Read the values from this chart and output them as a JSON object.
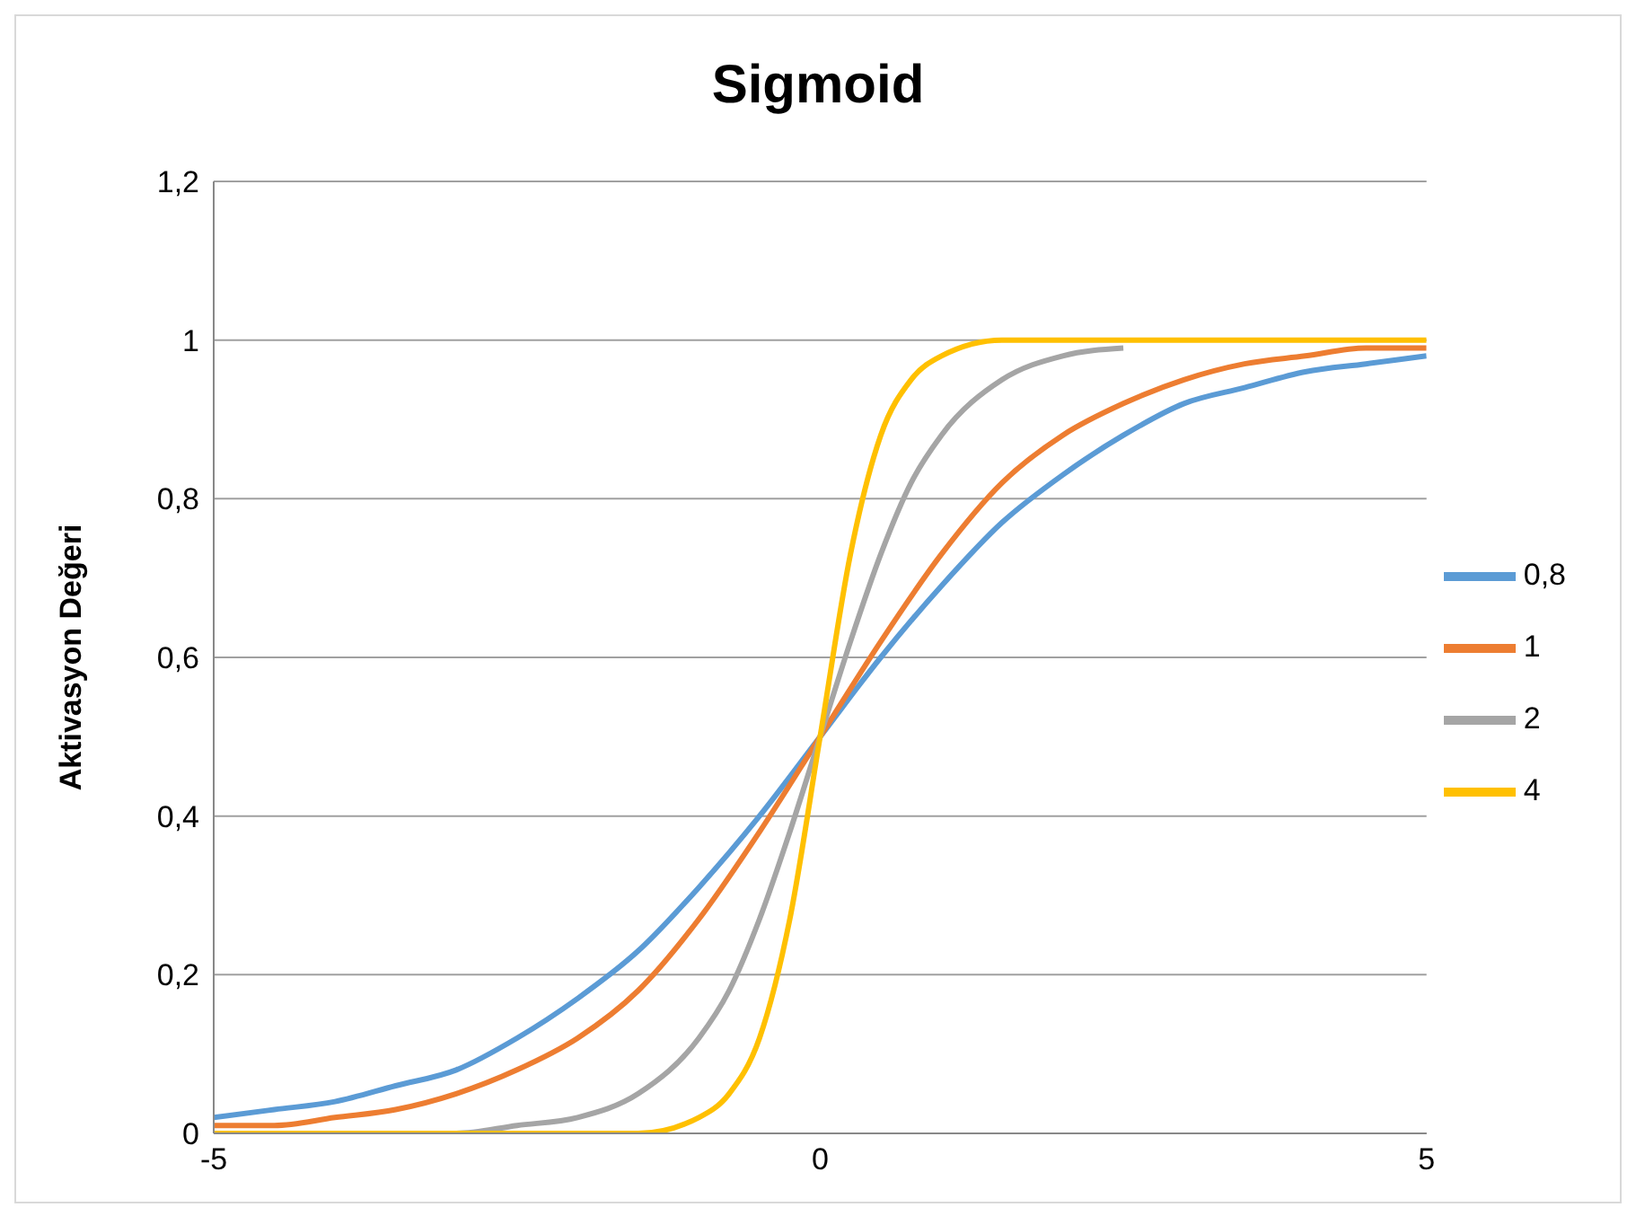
{
  "chart_data": {
    "type": "line",
    "title": "Sigmoid",
    "ylabel": "Aktivasyon Değeri",
    "xlim": [
      -5,
      5
    ],
    "xticks": [
      -5,
      0,
      5
    ],
    "ylim": [
      0,
      1.2
    ],
    "yticks": [
      0,
      {
        "value": 0.2,
        "label": "0,2"
      },
      {
        "value": 0.4,
        "label": "0,4"
      },
      {
        "value": 0.6,
        "label": "0,6"
      },
      {
        "value": 0.8,
        "label": "0,8"
      },
      1,
      {
        "value": 1.2,
        "label": "1,2"
      }
    ],
    "grid": "y",
    "legend": "right",
    "marker": "none",
    "line_style": "solid",
    "series": [
      {
        "name": "0,8",
        "color": "#5b9bd5",
        "x": [
          -5,
          -4.5,
          -4,
          -3.5,
          -3,
          -2.5,
          -2,
          -1.5,
          -1,
          -0.5,
          0,
          0.5,
          1,
          1.5,
          2,
          2.5,
          3,
          3.5,
          4,
          4.5,
          5
        ],
        "values": [
          0.02,
          0.03,
          0.04,
          0.06,
          0.08,
          0.12,
          0.17,
          0.23,
          0.31,
          0.4,
          0.5,
          0.6,
          0.69,
          0.77,
          0.83,
          0.88,
          0.92,
          0.94,
          0.96,
          0.97,
          0.98
        ]
      },
      {
        "name": "1",
        "color": "#ed7d31",
        "x": [
          -5,
          -4.5,
          -4,
          -3.5,
          -3,
          -2.5,
          -2,
          -1.5,
          -1,
          -0.5,
          0,
          0.5,
          1,
          1.5,
          2,
          2.5,
          3,
          3.5,
          4,
          4.5,
          5
        ],
        "values": [
          0.01,
          0.01,
          0.02,
          0.03,
          0.05,
          0.08,
          0.12,
          0.18,
          0.27,
          0.38,
          0.5,
          0.62,
          0.73,
          0.82,
          0.88,
          0.92,
          0.95,
          0.97,
          0.98,
          0.99,
          0.99
        ]
      },
      {
        "name": "2",
        "color": "#a5a5a5",
        "x": [
          -5,
          -3.5,
          -3,
          -2.5,
          -2,
          -1.5,
          -1,
          -0.75,
          -0.5,
          -0.25,
          0,
          0.25,
          0.5,
          0.75,
          1,
          1.5,
          2,
          2.5
        ],
        "values": [
          0,
          0,
          0,
          0.01,
          0.02,
          0.05,
          0.12,
          0.18,
          0.27,
          0.38,
          0.5,
          0.62,
          0.73,
          0.82,
          0.88,
          0.95,
          0.98,
          0.99
        ]
      },
      {
        "name": "4",
        "color": "#ffc000",
        "x": [
          -5,
          -2,
          -1.5,
          -1,
          -0.75,
          -0.5,
          -0.25,
          0,
          0.25,
          0.5,
          0.75,
          1,
          1.5,
          2,
          5
        ],
        "values": [
          0,
          0,
          0,
          0.02,
          0.05,
          0.12,
          0.27,
          0.5,
          0.73,
          0.88,
          0.95,
          0.98,
          1,
          1,
          1
        ]
      }
    ]
  }
}
